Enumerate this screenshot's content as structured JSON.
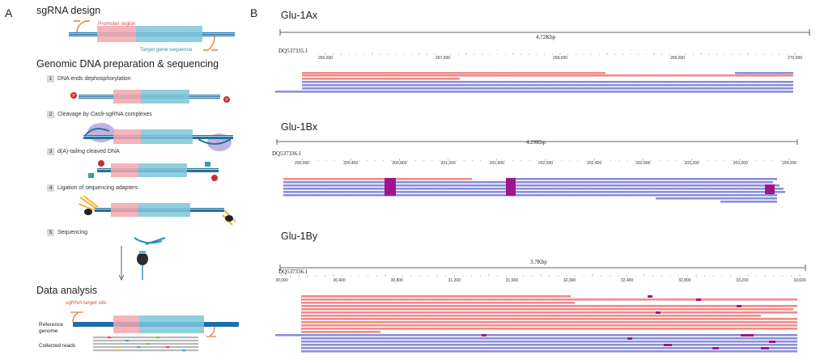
{
  "panel_a": {
    "letter": "A",
    "sgrna_design": {
      "heading": "sgRNA design",
      "promoter_label": "Promoter region",
      "target_label": "Target gene sequence"
    },
    "genomic": {
      "heading": "Genomic DNA preparation & sequencing",
      "steps": [
        {
          "num": "1",
          "label": "DNA ends dephosphorylation"
        },
        {
          "num": "2",
          "label": "Cleavage by Cas9-sgRNA complexes"
        },
        {
          "num": "3",
          "label": "d(A)-tailing cleaved DNA"
        },
        {
          "num": "4",
          "label": "Ligation of sequencing adapters"
        },
        {
          "num": "5",
          "label": "Sequencing"
        }
      ],
      "marks": {
        "p": "P",
        "three_prime": "3'",
        "five_prime": "5'"
      }
    },
    "analysis": {
      "heading": "Data analysis",
      "target_site_label": "sgRNA target site",
      "reference_label_1": "Reference",
      "reference_label_2": "genome",
      "reads_label": "Collected reads"
    }
  },
  "panel_b": {
    "letter": "B",
    "tracks": [
      {
        "name": "Glu-1Ax",
        "accession": "DQ537335.1",
        "span": "4.72Kbp",
        "ticks": [
          "266,000",
          "267,000",
          "268,000",
          "269,000",
          "270,000"
        ]
      },
      {
        "name": "Glu-1Bx",
        "accession": "DQ537336.1",
        "span": "4.29Kbp",
        "ticks": [
          "200,000",
          "200,400",
          "200,800",
          "201,200",
          "201,600",
          "202,000",
          "202,400",
          "202,800",
          "203,200",
          "203,600",
          "204,000"
        ]
      },
      {
        "name": "Glu-1By",
        "accession": "DQ537336.1",
        "span": "3.7Kbp",
        "ticks": [
          "30,000",
          "30,400",
          "30,800",
          "31,200",
          "31,600",
          "32,000",
          "32,400",
          "32,800",
          "33,200",
          "33,600"
        ]
      }
    ],
    "read_colors": {
      "forward": "#f08a8a",
      "reverse": "#8c8fd8",
      "mismatch": "#a0148c"
    }
  }
}
